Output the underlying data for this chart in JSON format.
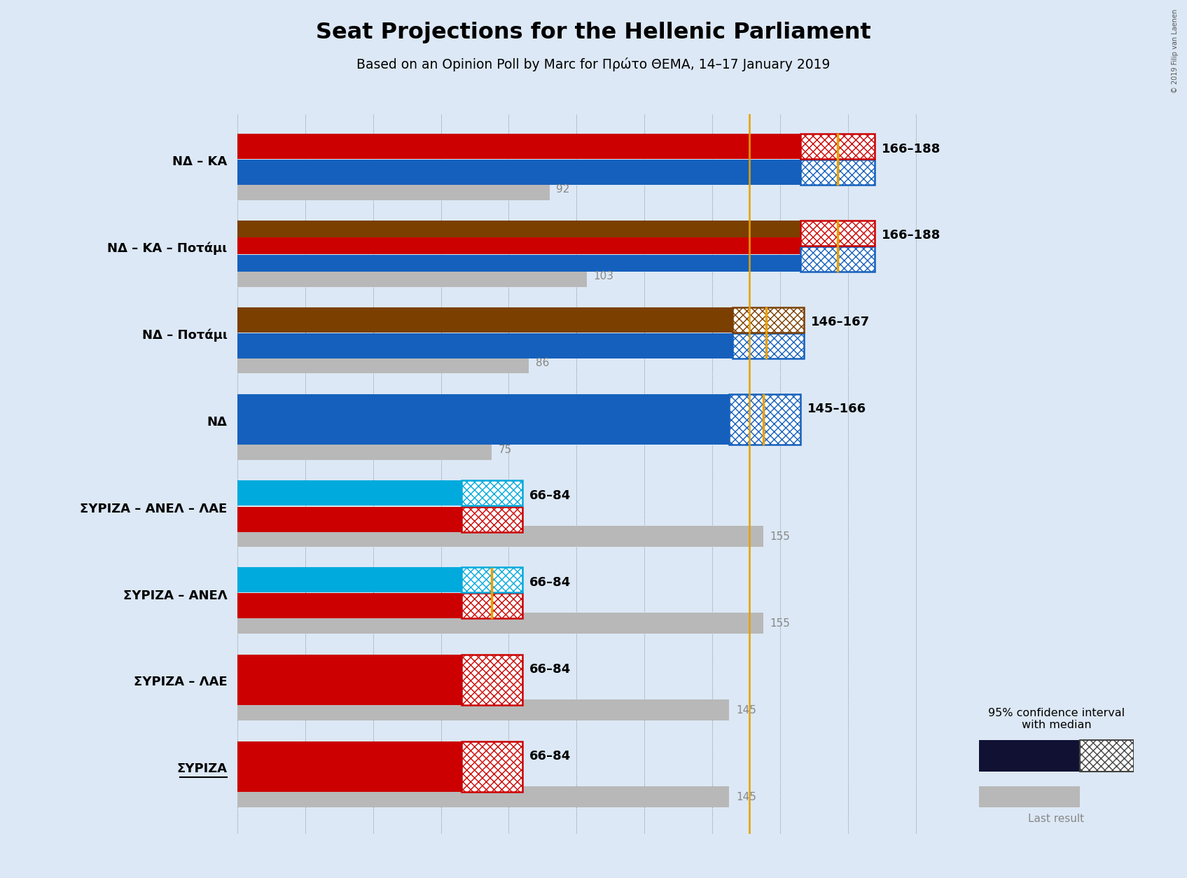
{
  "title": "Seat Projections for the Hellenic Parliament",
  "subtitle": "Based on an Opinion Poll by Marc for Πρώτο ΘΕΜΑ, 14–17 January 2019",
  "copyright": "© 2019 Filip van Laenen",
  "background_color": "#dce8f5",
  "x_max": 210,
  "majority_line": 151,
  "coalitions": [
    {
      "label": "ΝΔ – ΚΑ",
      "underline": false,
      "solid_colors": [
        "#1560BD",
        "#CC0000"
      ],
      "hatch_colors": [
        "#1560BD",
        "#CC0000"
      ],
      "ci_low": 166,
      "ci_high": 188,
      "median": 177,
      "last_result": 92,
      "range_label": "166–188",
      "last_label": "92"
    },
    {
      "label": "ΝΔ – ΚΑ – Ποτάμι",
      "underline": false,
      "solid_colors": [
        "#1560BD",
        "#CC0000",
        "#7B3F00"
      ],
      "hatch_colors": [
        "#1560BD",
        "#CC0000"
      ],
      "ci_low": 166,
      "ci_high": 188,
      "median": 177,
      "last_result": 103,
      "range_label": "166–188",
      "last_label": "103"
    },
    {
      "label": "ΝΔ – Ποτάμι",
      "underline": false,
      "solid_colors": [
        "#1560BD",
        "#7B3F00"
      ],
      "hatch_colors": [
        "#1560BD",
        "#7B3F00"
      ],
      "ci_low": 146,
      "ci_high": 167,
      "median": 156,
      "last_result": 86,
      "range_label": "146–167",
      "last_label": "86"
    },
    {
      "label": "ΝΔ",
      "underline": false,
      "solid_colors": [
        "#1560BD"
      ],
      "hatch_colors": [
        "#1560BD"
      ],
      "ci_low": 145,
      "ci_high": 166,
      "median": 155,
      "last_result": 75,
      "range_label": "145–166",
      "last_label": "75"
    },
    {
      "label": "ΣΥΡΙΖΑ – ΑΝΕΛ – ΛΑΕ",
      "underline": false,
      "solid_colors": [
        "#CC0000",
        "#00AADD"
      ],
      "hatch_colors": [
        "#CC0000",
        "#00AADD"
      ],
      "ci_low": 66,
      "ci_high": 84,
      "median": null,
      "last_result": 155,
      "range_label": "66–84",
      "last_label": "155"
    },
    {
      "label": "ΣΥΡΙΖΑ – ΑΝΕΛ",
      "underline": false,
      "solid_colors": [
        "#CC0000",
        "#00AADD"
      ],
      "hatch_colors": [
        "#CC0000",
        "#00AADD"
      ],
      "ci_low": 66,
      "ci_high": 84,
      "median": 75,
      "last_result": 155,
      "range_label": "66–84",
      "last_label": "155"
    },
    {
      "label": "ΣΥΡΙΖΑ – ΛΑΕ",
      "underline": false,
      "solid_colors": [
        "#CC0000"
      ],
      "hatch_colors": [
        "#CC0000"
      ],
      "ci_low": 66,
      "ci_high": 84,
      "median": null,
      "last_result": 145,
      "range_label": "66–84",
      "last_label": "145"
    },
    {
      "label": "ΣΥΡΙΖΑ",
      "underline": true,
      "solid_colors": [
        "#CC0000"
      ],
      "hatch_colors": [
        "#CC0000"
      ],
      "ci_low": 66,
      "ci_high": 84,
      "median": null,
      "last_result": 145,
      "range_label": "66–84",
      "last_label": "145"
    }
  ]
}
